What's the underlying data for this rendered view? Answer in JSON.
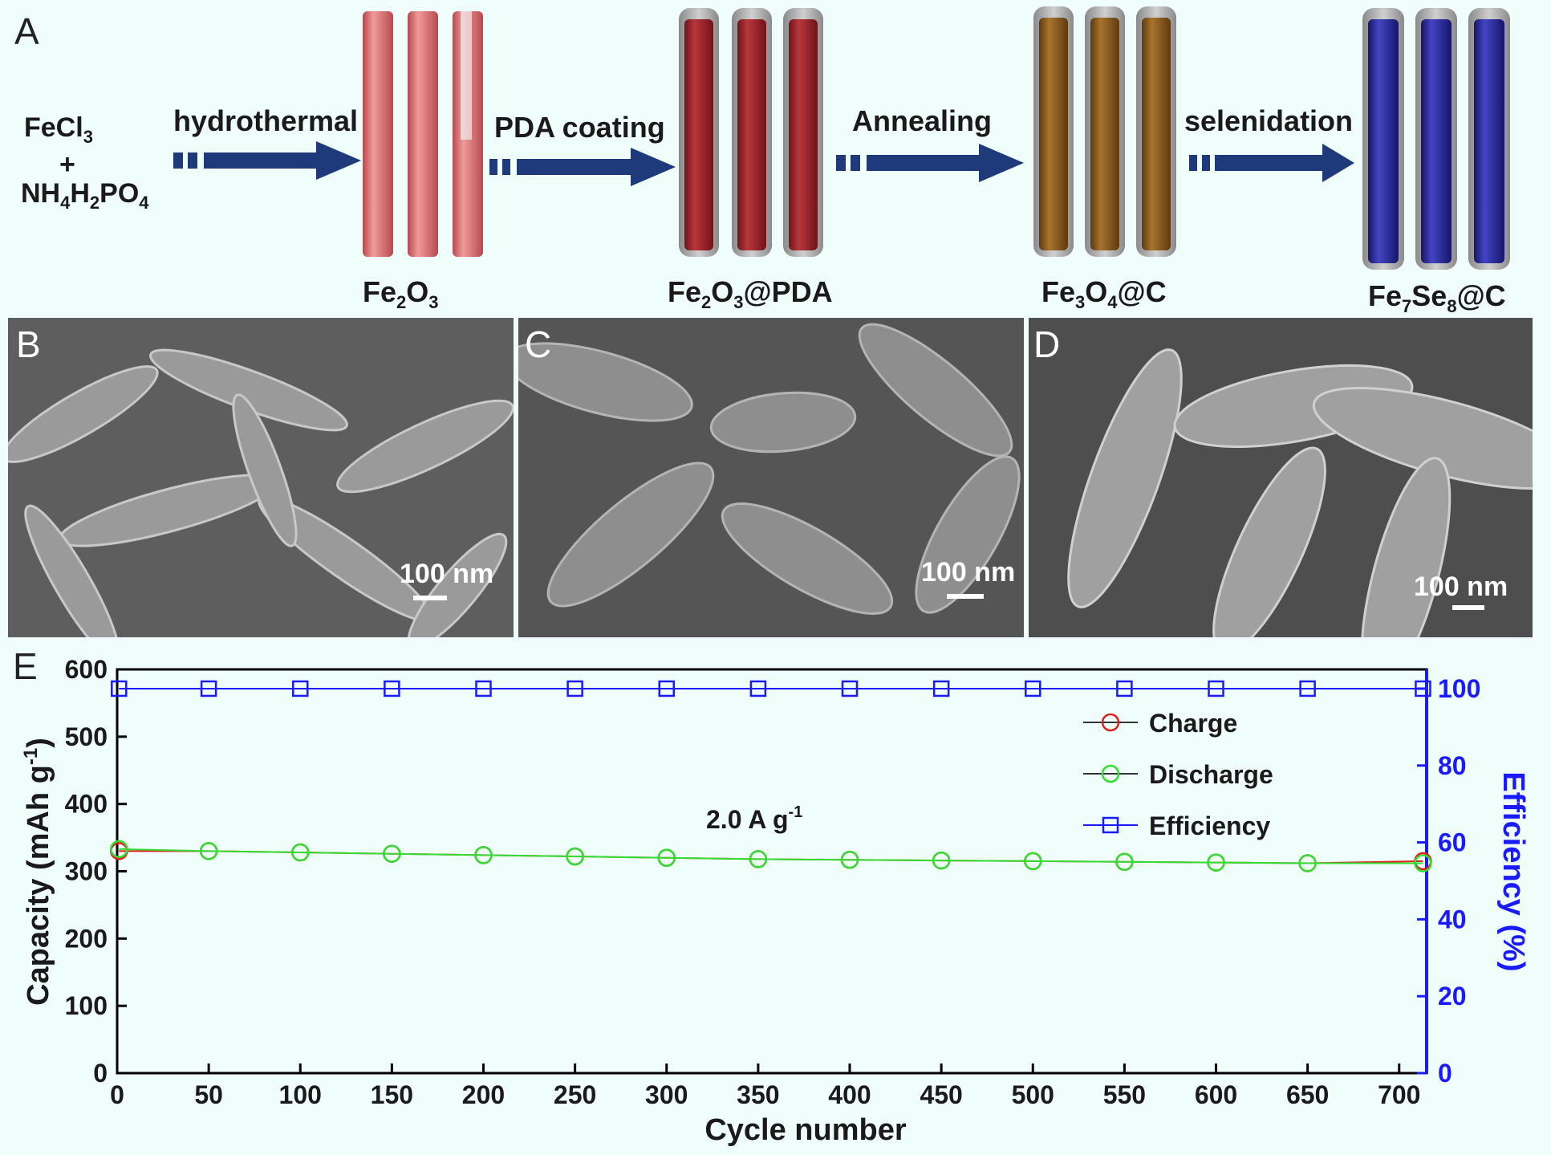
{
  "scheme": {
    "panel_letter": "A",
    "precursor": {
      "line1": "FeCl",
      "line1_sub": "3",
      "plus": "+",
      "line3_a": "NH",
      "line3_sub1": "4",
      "line3_b": "H",
      "line3_sub2": "2",
      "line3_c": "PO",
      "line3_sub3": "4"
    },
    "steps": [
      {
        "label": "hydrothermal"
      },
      {
        "label": "PDA coating"
      },
      {
        "label": "Annealing"
      },
      {
        "label": "selenidation"
      }
    ],
    "products": [
      {
        "p1": "Fe",
        "s1": "2",
        "p2": "O",
        "s2": "3",
        "p3": "",
        "color": "#d96f72"
      },
      {
        "p1": "Fe",
        "s1": "2",
        "p2": "O",
        "s2": "3",
        "p3": "@PDA",
        "color": "#a3272d"
      },
      {
        "p1": "Fe",
        "s1": "3",
        "p2": "O",
        "s2": "4",
        "p3": "@C",
        "color": "#8c5a22"
      },
      {
        "p1": "Fe",
        "s1": "7",
        "p2": "Se",
        "s2": "8",
        "p3": "@C",
        "color": "#2b2b9c"
      }
    ]
  },
  "sem_panels": [
    {
      "letter": "B",
      "scale_label": "100 nm"
    },
    {
      "letter": "C",
      "scale_label": "100 nm"
    },
    {
      "letter": "D",
      "scale_label": "100 nm"
    }
  ],
  "chart_data": {
    "panel_letter": "E",
    "type": "scatter",
    "xlabel": "Cycle number",
    "ylabel_left": "Capacity (mAh g",
    "ylabel_left_sup": "-1",
    "ylabel_left_end": ")",
    "ylabel_right": "Efficiency (%)",
    "annotation": "2.0 A g",
    "annotation_sup": "-1",
    "xlim": [
      0,
      715
    ],
    "ylim_left": [
      0,
      600
    ],
    "ylim_right": [
      0,
      105
    ],
    "xticks": [
      0,
      50,
      100,
      150,
      200,
      250,
      300,
      350,
      400,
      450,
      500,
      550,
      600,
      650,
      700
    ],
    "yticks_left": [
      0,
      100,
      200,
      300,
      400,
      500,
      600
    ],
    "yticks_right": [
      0,
      20,
      40,
      60,
      80,
      100
    ],
    "legend_position": "top-right",
    "series": [
      {
        "name": "Charge",
        "axis": "left",
        "marker": "circle",
        "color": "#e02020",
        "x": [
          1,
          50,
          100,
          150,
          200,
          250,
          300,
          350,
          400,
          450,
          500,
          550,
          600,
          650,
          713
        ],
        "y": [
          330,
          330,
          328,
          326,
          324,
          322,
          320,
          318,
          317,
          316,
          315,
          314,
          313,
          312,
          315
        ]
      },
      {
        "name": "Discharge",
        "axis": "left",
        "marker": "circle",
        "color": "#33dd33",
        "x": [
          1,
          50,
          100,
          150,
          200,
          250,
          300,
          350,
          400,
          450,
          500,
          550,
          600,
          650,
          713
        ],
        "y": [
          333,
          330,
          328,
          326,
          324,
          322,
          320,
          318,
          317,
          316,
          315,
          314,
          313,
          312,
          312
        ]
      },
      {
        "name": "Efficiency",
        "axis": "right",
        "marker": "square",
        "color": "#1a1aff",
        "x": [
          1,
          50,
          100,
          150,
          200,
          250,
          300,
          350,
          400,
          450,
          500,
          550,
          600,
          650,
          713
        ],
        "y": [
          100,
          100,
          100,
          100,
          100,
          100,
          100,
          100,
          100,
          100,
          100,
          100,
          100,
          100,
          100
        ]
      }
    ]
  }
}
